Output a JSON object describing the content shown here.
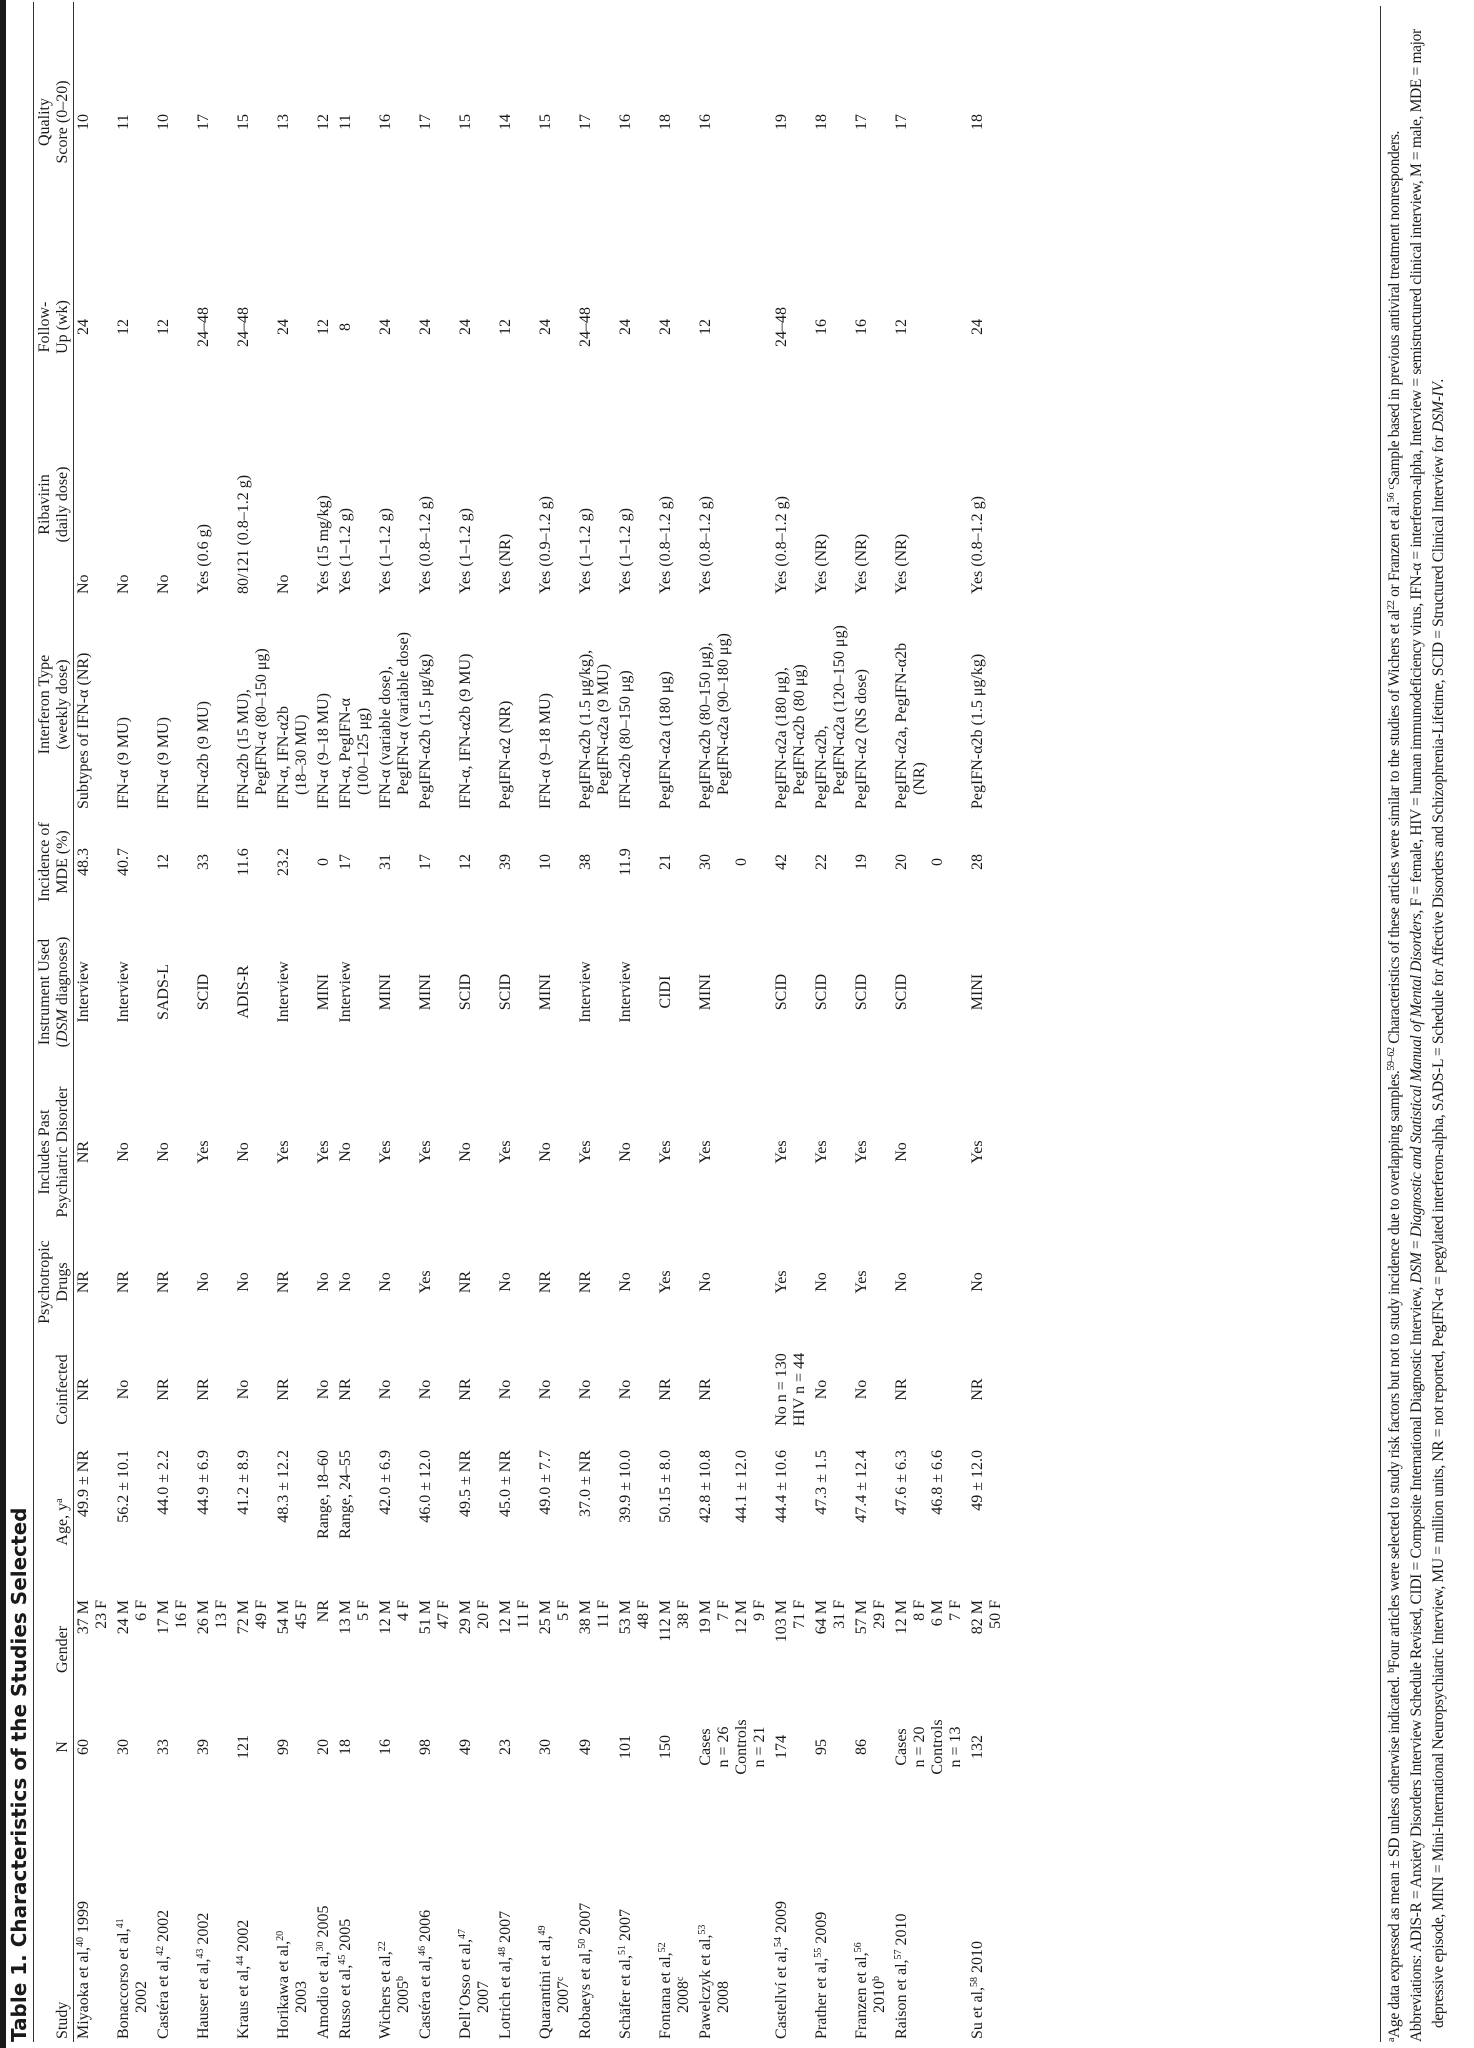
{
  "title": "Table 1. Characteristics of the Studies Selected",
  "headers": {
    "study": [
      "Study"
    ],
    "n": [
      "N"
    ],
    "gender": [
      "Gender"
    ],
    "age": [
      "Age, y",
      "a"
    ],
    "coinf": [
      "Coinfected"
    ],
    "psych": [
      "Psychotropic",
      "Drugs"
    ],
    "past": [
      "Includes Past",
      "Psychiatric Disorder"
    ],
    "instr": [
      "Instrument Used",
      "(",
      "DSM",
      " diagnoses)"
    ],
    "inc": [
      "Incidence of",
      "MDE (%)"
    ],
    "ifn": [
      "Interferon Type",
      "(weekly dose)"
    ],
    "riba": [
      "Ribavirin",
      "(daily dose)"
    ],
    "fu": [
      "Follow-",
      "Up (wk)"
    ],
    "q": [
      "Quality",
      "Score (0–20)"
    ]
  },
  "rows": [
    {
      "study": {
        "author": "Miyaoka et al,",
        "ref": "40",
        "year": "1999",
        "note": "",
        "wrap": false
      },
      "n": [
        "60"
      ],
      "gender": [
        "37 M",
        "23 F"
      ],
      "age": [
        "49.9 ± NR"
      ],
      "coinf": [
        "NR"
      ],
      "psych": [
        "NR"
      ],
      "past": [
        "NR"
      ],
      "instr": [
        "Interview"
      ],
      "inc": [
        "48.3"
      ],
      "ifn": [
        "Subtypes of IFN-α (NR)"
      ],
      "riba": [
        "No"
      ],
      "fu": [
        "24"
      ],
      "q": [
        "10"
      ]
    },
    {
      "study": {
        "author": "Bonaccorso et al,",
        "ref": "41",
        "year": "2002",
        "note": "",
        "wrap": true
      },
      "n": [
        "30"
      ],
      "gender": [
        "24 M",
        "6 F"
      ],
      "age": [
        "56.2 ± 10.1"
      ],
      "coinf": [
        "No"
      ],
      "psych": [
        "NR"
      ],
      "past": [
        "No"
      ],
      "instr": [
        "Interview"
      ],
      "inc": [
        "40.7"
      ],
      "ifn": [
        "IFN-α (9 MU)"
      ],
      "riba": [
        "No"
      ],
      "fu": [
        "12"
      ],
      "q": [
        "11"
      ]
    },
    {
      "study": {
        "author": "Castéra et al,",
        "ref": "42",
        "year": "2002",
        "note": "",
        "wrap": false
      },
      "n": [
        "33"
      ],
      "gender": [
        "17 M",
        "16 F"
      ],
      "age": [
        "44.0 ± 2.2"
      ],
      "coinf": [
        "NR"
      ],
      "psych": [
        "NR"
      ],
      "past": [
        "No"
      ],
      "instr": [
        "SADS-L"
      ],
      "inc": [
        "12"
      ],
      "ifn": [
        "IFN-α (9 MU)"
      ],
      "riba": [
        "No"
      ],
      "fu": [
        "12"
      ],
      "q": [
        "10"
      ]
    },
    {
      "study": {
        "author": "Hauser et al,",
        "ref": "43",
        "year": "2002",
        "note": "",
        "wrap": false
      },
      "n": [
        "39"
      ],
      "gender": [
        "26 M",
        "13 F"
      ],
      "age": [
        "44.9 ± 6.9"
      ],
      "coinf": [
        "NR"
      ],
      "psych": [
        "No"
      ],
      "past": [
        "Yes"
      ],
      "instr": [
        "SCID"
      ],
      "inc": [
        "33"
      ],
      "ifn": [
        "IFN-α2b (9 MU)"
      ],
      "riba": [
        "Yes (0.6 g)"
      ],
      "fu": [
        "24–48"
      ],
      "q": [
        "17"
      ]
    },
    {
      "study": {
        "author": "Kraus et al,",
        "ref": "44",
        "year": "2002",
        "note": "",
        "wrap": false
      },
      "n": [
        "121"
      ],
      "gender": [
        "72 M",
        "49 F"
      ],
      "age": [
        "41.2 ± 8.9"
      ],
      "coinf": [
        "No"
      ],
      "psych": [
        "No"
      ],
      "past": [
        "No"
      ],
      "instr": [
        "ADIS-R"
      ],
      "inc": [
        "11.6"
      ],
      "ifn": [
        "IFN-α2b (15 MU),",
        "PegIFN-α (80–150 μg)"
      ],
      "riba": [
        "80/121 (0.8–1.2 g)"
      ],
      "fu": [
        "24–48"
      ],
      "q": [
        "15"
      ]
    },
    {
      "study": {
        "author": "Horikawa et al,",
        "ref": "20",
        "year": "2003",
        "note": "",
        "wrap": true
      },
      "n": [
        "99"
      ],
      "gender": [
        "54 M",
        "45 F"
      ],
      "age": [
        "48.3 ± 12.2"
      ],
      "coinf": [
        "NR"
      ],
      "psych": [
        "NR"
      ],
      "past": [
        "Yes"
      ],
      "instr": [
        "Interview"
      ],
      "inc": [
        "23.2"
      ],
      "ifn": [
        "IFN-α, IFN-α2b",
        "(18–30 MU)"
      ],
      "riba": [
        "No"
      ],
      "fu": [
        "24"
      ],
      "q": [
        "13"
      ]
    },
    {
      "study": {
        "author": "Amodio et al,",
        "ref": "30",
        "year": "2005",
        "note": "",
        "wrap": false
      },
      "n": [
        "20"
      ],
      "gender": [
        "NR"
      ],
      "age": [
        "Range, 18–60"
      ],
      "coinf": [
        "No"
      ],
      "psych": [
        "No"
      ],
      "past": [
        "Yes"
      ],
      "instr": [
        "MINI"
      ],
      "inc": [
        "0"
      ],
      "ifn": [
        "IFN-α (9–18 MU)"
      ],
      "riba": [
        "Yes (15 mg/kg)"
      ],
      "fu": [
        "12"
      ],
      "q": [
        "12"
      ]
    },
    {
      "study": {
        "author": "Russo et al,",
        "ref": "45",
        "year": "2005",
        "note": "",
        "wrap": false
      },
      "n": [
        "18"
      ],
      "gender": [
        "13 M",
        "5 F"
      ],
      "age": [
        "Range, 24–55"
      ],
      "coinf": [
        "NR"
      ],
      "psych": [
        "No"
      ],
      "past": [
        "No"
      ],
      "instr": [
        "Interview"
      ],
      "inc": [
        "17"
      ],
      "ifn": [
        "IFN-α, PegIFN-α",
        "(100–125 μg)"
      ],
      "riba": [
        "Yes (1–1.2 g)"
      ],
      "fu": [
        "8"
      ],
      "q": [
        "11"
      ]
    },
    {
      "study": {
        "author": "Wichers et al,",
        "ref": "22",
        "year": "2005",
        "note": "b",
        "wrap": true
      },
      "n": [
        "16"
      ],
      "gender": [
        "12 M",
        "4 F"
      ],
      "age": [
        "42.0 ± 6.9"
      ],
      "coinf": [
        "No"
      ],
      "psych": [
        "No"
      ],
      "past": [
        "Yes"
      ],
      "instr": [
        "MINI"
      ],
      "inc": [
        "31"
      ],
      "ifn": [
        "IFN-α (variable dose),",
        "PegIFN-α (variable dose)"
      ],
      "riba": [
        "Yes (1–1.2 g)"
      ],
      "fu": [
        "24"
      ],
      "q": [
        "16"
      ]
    },
    {
      "study": {
        "author": "Castéra et al,",
        "ref": "46",
        "year": "2006",
        "note": "",
        "wrap": false
      },
      "n": [
        "98"
      ],
      "gender": [
        "51 M",
        "47 F"
      ],
      "age": [
        "46.0 ± 12.0"
      ],
      "coinf": [
        "No"
      ],
      "psych": [
        "Yes"
      ],
      "past": [
        "Yes"
      ],
      "instr": [
        "MINI"
      ],
      "inc": [
        "17"
      ],
      "ifn": [
        "PegIFN-α2b (1.5 μg/kg)"
      ],
      "riba": [
        "Yes (0.8–1.2 g)"
      ],
      "fu": [
        "24"
      ],
      "q": [
        "17"
      ]
    },
    {
      "study": {
        "author": "Dell’Osso et al,",
        "ref": "47",
        "year": "2007",
        "note": "",
        "wrap": true
      },
      "n": [
        "49"
      ],
      "gender": [
        "29 M",
        "20 F"
      ],
      "age": [
        "49.5 ± NR"
      ],
      "coinf": [
        "NR"
      ],
      "psych": [
        "NR"
      ],
      "past": [
        "No"
      ],
      "instr": [
        "SCID"
      ],
      "inc": [
        "12"
      ],
      "ifn": [
        "IFN-α, IFN-α2b (9 MU)"
      ],
      "riba": [
        "Yes (1–1.2 g)"
      ],
      "fu": [
        "24"
      ],
      "q": [
        "15"
      ]
    },
    {
      "study": {
        "author": "Lotrich et al,",
        "ref": "48",
        "year": "2007",
        "note": "",
        "wrap": false
      },
      "n": [
        "23"
      ],
      "gender": [
        "12 M",
        "11 F"
      ],
      "age": [
        "45.0 ± NR"
      ],
      "coinf": [
        "No"
      ],
      "psych": [
        "No"
      ],
      "past": [
        "Yes"
      ],
      "instr": [
        "SCID"
      ],
      "inc": [
        "39"
      ],
      "ifn": [
        "PegIFN-α2 (NR)"
      ],
      "riba": [
        "Yes (NR)"
      ],
      "fu": [
        "12"
      ],
      "q": [
        "14"
      ]
    },
    {
      "study": {
        "author": "Quarantini et al,",
        "ref": "49",
        "year": "2007",
        "note": "c",
        "wrap": true
      },
      "n": [
        "30"
      ],
      "gender": [
        "25 M",
        "5 F"
      ],
      "age": [
        "49.0 ± 7.7"
      ],
      "coinf": [
        "No"
      ],
      "psych": [
        "NR"
      ],
      "past": [
        "No"
      ],
      "instr": [
        "MINI"
      ],
      "inc": [
        "10"
      ],
      "ifn": [
        "IFN-α (9–18 MU)"
      ],
      "riba": [
        "Yes (0.9–1.2 g)"
      ],
      "fu": [
        "24"
      ],
      "q": [
        "15"
      ]
    },
    {
      "study": {
        "author": "Robaeys et al,",
        "ref": "50",
        "year": "2007",
        "note": "",
        "wrap": false
      },
      "n": [
        "49"
      ],
      "gender": [
        "38 M",
        "11 F"
      ],
      "age": [
        "37.0 ± NR"
      ],
      "coinf": [
        "No"
      ],
      "psych": [
        "NR"
      ],
      "past": [
        "Yes"
      ],
      "instr": [
        "Interview"
      ],
      "inc": [
        "38"
      ],
      "ifn": [
        "PegIFN-α2b (1.5 μg/kg),",
        "PegIFN-α2a (9 MU)"
      ],
      "riba": [
        "Yes (1–1.2 g)"
      ],
      "fu": [
        "24–48"
      ],
      "q": [
        "17"
      ]
    },
    {
      "study": {
        "author": "Schäfer et al,",
        "ref": "51",
        "year": "2007",
        "note": "",
        "wrap": false
      },
      "n": [
        "101"
      ],
      "gender": [
        "53 M",
        "48 F"
      ],
      "age": [
        "39.9 ± 10.0"
      ],
      "coinf": [
        "No"
      ],
      "psych": [
        "No"
      ],
      "past": [
        "No"
      ],
      "instr": [
        "Interview"
      ],
      "inc": [
        "11.9"
      ],
      "ifn": [
        "IFN-α2b (80–150 μg)"
      ],
      "riba": [
        "Yes (1–1.2 g)"
      ],
      "fu": [
        "24"
      ],
      "q": [
        "16"
      ]
    },
    {
      "study": {
        "author": "Fontana et al,",
        "ref": "52",
        "year": "2008",
        "note": "c",
        "wrap": true
      },
      "n": [
        "150"
      ],
      "gender": [
        "112 M",
        "38 F"
      ],
      "age": [
        "50.15 ± 8.0"
      ],
      "coinf": [
        "NR"
      ],
      "psych": [
        "Yes"
      ],
      "past": [
        "Yes"
      ],
      "instr": [
        "CIDI"
      ],
      "inc": [
        "21"
      ],
      "ifn": [
        "PegIFN-α2a (180 μg)"
      ],
      "riba": [
        "Yes (0.8–1.2 g)"
      ],
      "fu": [
        "24"
      ],
      "q": [
        "18"
      ]
    },
    {
      "study": {
        "author": "Pawelczyk et al,",
        "ref": "53",
        "year": "2008",
        "note": "",
        "wrap": true
      },
      "n": [
        "Cases",
        "n = 26",
        "Controls",
        "n = 21"
      ],
      "gender": [
        "19 M",
        "7 F",
        "12 M",
        "9 F"
      ],
      "age": [
        "42.8 ± 10.8",
        "",
        "44.1 ± 12.0"
      ],
      "coinf": [
        "NR"
      ],
      "psych": [
        "No"
      ],
      "past": [
        "Yes"
      ],
      "instr": [
        "MINI"
      ],
      "inc": [
        "30",
        "",
        "0"
      ],
      "ifn": [
        "PegIFN-α2b (80–150 μg),",
        "PegIFN-α2a (90–180 μg)"
      ],
      "riba": [
        "Yes (0.8–1.2 g)"
      ],
      "fu": [
        "12"
      ],
      "q": [
        "16"
      ]
    },
    {
      "study": {
        "author": "Castellví et al,",
        "ref": "54",
        "year": "2009",
        "note": "",
        "wrap": false
      },
      "n": [
        "174"
      ],
      "gender": [
        "103 M",
        "71 F"
      ],
      "age": [
        "44.4 ± 10.6"
      ],
      "coinf": [
        "No n = 130",
        "HIV n = 44"
      ],
      "psych": [
        "Yes"
      ],
      "past": [
        "Yes"
      ],
      "instr": [
        "SCID"
      ],
      "inc": [
        "42"
      ],
      "ifn": [
        "PegIFN-α2a (180 μg),",
        "PegIFN-α2b (80 μg)"
      ],
      "riba": [
        "Yes (0.8–1.2 g)"
      ],
      "fu": [
        "24–48"
      ],
      "q": [
        "19"
      ]
    },
    {
      "study": {
        "author": "Prather et al,",
        "ref": "55",
        "year": "2009",
        "note": "",
        "wrap": false
      },
      "n": [
        "95"
      ],
      "gender": [
        "64 M",
        "31 F"
      ],
      "age": [
        "47.3 ± 1.5"
      ],
      "coinf": [
        "No"
      ],
      "psych": [
        "No"
      ],
      "past": [
        "Yes"
      ],
      "instr": [
        "SCID"
      ],
      "inc": [
        "22"
      ],
      "ifn": [
        "PegIFN-α2b,",
        "PegIFN-α2a (120–150 μg)"
      ],
      "riba": [
        "Yes (NR)"
      ],
      "fu": [
        "16"
      ],
      "q": [
        "18"
      ]
    },
    {
      "study": {
        "author": "Franzen et al,",
        "ref": "56",
        "year": "2010",
        "note": "b",
        "wrap": true
      },
      "n": [
        "86"
      ],
      "gender": [
        "57 M",
        "29 F"
      ],
      "age": [
        "47.4 ± 12.4"
      ],
      "coinf": [
        "No"
      ],
      "psych": [
        "Yes"
      ],
      "past": [
        "Yes"
      ],
      "instr": [
        "SCID"
      ],
      "inc": [
        "19"
      ],
      "ifn": [
        "PegIFN-α2 (NS dose)"
      ],
      "riba": [
        "Yes (NR)"
      ],
      "fu": [
        "16"
      ],
      "q": [
        "17"
      ]
    },
    {
      "study": {
        "author": "Raison et al,",
        "ref": "57",
        "year": "2010",
        "note": "",
        "wrap": false
      },
      "n": [
        "Cases",
        "n = 20",
        "Controls",
        "n = 13"
      ],
      "gender": [
        "12 M",
        "8 F",
        "6 M",
        "7 F"
      ],
      "age": [
        "47.6 ± 6.3",
        "",
        "46.8 ± 6.6"
      ],
      "coinf": [
        "NR"
      ],
      "psych": [
        "No"
      ],
      "past": [
        "No"
      ],
      "instr": [
        "SCID"
      ],
      "inc": [
        "20",
        "",
        "0"
      ],
      "ifn": [
        "PegIFN-α2a, PegIFN-α2b",
        "(NR)"
      ],
      "riba": [
        "Yes (NR)"
      ],
      "fu": [
        "12"
      ],
      "q": [
        "17"
      ]
    },
    {
      "study": {
        "author": "Su et al,",
        "ref": "58",
        "year": "2010",
        "note": "",
        "wrap": false
      },
      "n": [
        "132"
      ],
      "gender": [
        "82 M",
        "50 F"
      ],
      "age": [
        "49 ± 12.0"
      ],
      "coinf": [
        "NR"
      ],
      "psych": [
        "No"
      ],
      "past": [
        "Yes"
      ],
      "instr": [
        "MINI"
      ],
      "inc": [
        "28"
      ],
      "ifn": [
        "PegIFN-α2b (1.5 μg/kg)"
      ],
      "riba": [
        "Yes (0.8–1.2 g)"
      ],
      "fu": [
        "24"
      ],
      "q": [
        "18"
      ]
    }
  ],
  "footnotes": [
    [
      {
        "t": "a",
        "sup": true
      },
      {
        "t": "Age data expressed as mean ± SD unless otherwise indicated.  "
      },
      {
        "t": "b",
        "sup": true
      },
      {
        "t": "Four articles were selected to study risk factors but not to study incidence due to overlapping samples."
      },
      {
        "t": "59–62",
        "sup": true
      },
      {
        "t": " Characteristics of these articles were similar to the studies of Wichers et al"
      },
      {
        "t": "22",
        "sup": true
      },
      {
        "t": " or Franzen et al."
      },
      {
        "t": "56",
        "sup": true
      },
      {
        "t": "  "
      },
      {
        "t": "c",
        "sup": true
      },
      {
        "t": "Sample based in previous antiviral treatment nonresponders."
      }
    ],
    [
      {
        "t": "Abbreviations: ADIS-R = Anxiety Disorders Interview Schedule Revised, CIDI = Composite International Diagnostic Interview, "
      },
      {
        "t": "DSM",
        "it": true
      },
      {
        "t": " = "
      },
      {
        "t": "Diagnostic and Statistical Manual of Mental Disorders",
        "it": true
      },
      {
        "t": ", F = female, HIV = human immunodeficiency virus, IFN-α = interferon-alpha, Interview = semistructured clinical interview, M = male, MDE = major depressive episode, MINI = Mini-International Neuropsychiatric Interview, MU = million units, NR = not reported, PegIFN-α = pegylated interferon-alpha, SADS-L = Schedule for Affective Disorders and Schizophrenia-Lifetime, SCID = Structured Clinical Interview for "
      },
      {
        "t": "DSM-IV",
        "it": true
      },
      {
        "t": "."
      }
    ]
  ]
}
